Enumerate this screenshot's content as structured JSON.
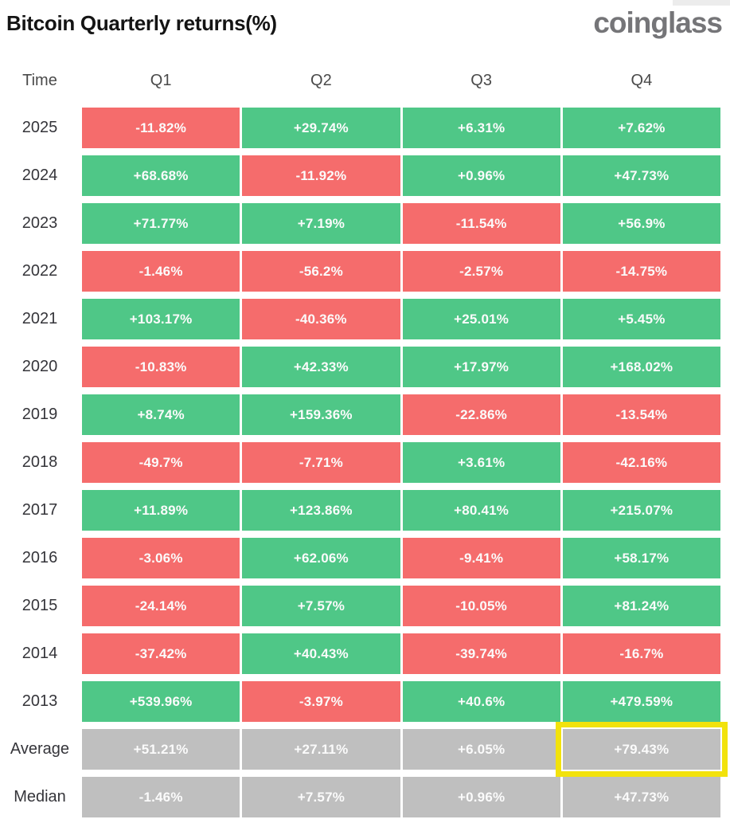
{
  "header": {
    "title": "Bitcoin Quarterly returns(%)",
    "logo_text": "coinglass"
  },
  "columns": [
    "Time",
    "Q1",
    "Q2",
    "Q3",
    "Q4"
  ],
  "chart_data": {
    "type": "heatmap",
    "title": "Bitcoin Quarterly returns(%)",
    "columns": [
      "Q1",
      "Q2",
      "Q3",
      "Q4"
    ],
    "rows": [
      {
        "label": "2025",
        "type": "year",
        "values": [
          "-11.82%",
          "+29.74%",
          "+6.31%",
          "+7.62%"
        ]
      },
      {
        "label": "2024",
        "type": "year",
        "values": [
          "+68.68%",
          "-11.92%",
          "+0.96%",
          "+47.73%"
        ]
      },
      {
        "label": "2023",
        "type": "year",
        "values": [
          "+71.77%",
          "+7.19%",
          "-11.54%",
          "+56.9%"
        ]
      },
      {
        "label": "2022",
        "type": "year",
        "values": [
          "-1.46%",
          "-56.2%",
          "-2.57%",
          "-14.75%"
        ]
      },
      {
        "label": "2021",
        "type": "year",
        "values": [
          "+103.17%",
          "-40.36%",
          "+25.01%",
          "+5.45%"
        ]
      },
      {
        "label": "2020",
        "type": "year",
        "values": [
          "-10.83%",
          "+42.33%",
          "+17.97%",
          "+168.02%"
        ]
      },
      {
        "label": "2019",
        "type": "year",
        "values": [
          "+8.74%",
          "+159.36%",
          "-22.86%",
          "-13.54%"
        ]
      },
      {
        "label": "2018",
        "type": "year",
        "values": [
          "-49.7%",
          "-7.71%",
          "+3.61%",
          "-42.16%"
        ]
      },
      {
        "label": "2017",
        "type": "year",
        "values": [
          "+11.89%",
          "+123.86%",
          "+80.41%",
          "+215.07%"
        ]
      },
      {
        "label": "2016",
        "type": "year",
        "values": [
          "-3.06%",
          "+62.06%",
          "-9.41%",
          "+58.17%"
        ]
      },
      {
        "label": "2015",
        "type": "year",
        "values": [
          "-24.14%",
          "+7.57%",
          "-10.05%",
          "+81.24%"
        ]
      },
      {
        "label": "2014",
        "type": "year",
        "values": [
          "-37.42%",
          "+40.43%",
          "-39.74%",
          "-16.7%"
        ]
      },
      {
        "label": "2013",
        "type": "year",
        "values": [
          "+539.96%",
          "-3.97%",
          "+40.6%",
          "+479.59%"
        ]
      },
      {
        "label": "Average",
        "type": "summary",
        "values": [
          "+51.21%",
          "+27.11%",
          "+6.05%",
          "+79.43%"
        ]
      },
      {
        "label": "Median",
        "type": "summary",
        "values": [
          "-1.46%",
          "+7.57%",
          "+0.96%",
          "+47.73%"
        ]
      }
    ],
    "colors": {
      "positive": "#4fc787",
      "negative": "#f56c6c",
      "summary": "#bfbfbf",
      "highlight": "#f2e20c",
      "cell_text": "#fbfbfb",
      "label_text": "#35353a",
      "title_text": "#141414",
      "logo_text": "#757578"
    },
    "highlight": {
      "row": "Average",
      "column": "Q4",
      "column_index": 3
    },
    "legend": "green = positive quarterly return, red = negative quarterly return, gray = summary statistic"
  }
}
